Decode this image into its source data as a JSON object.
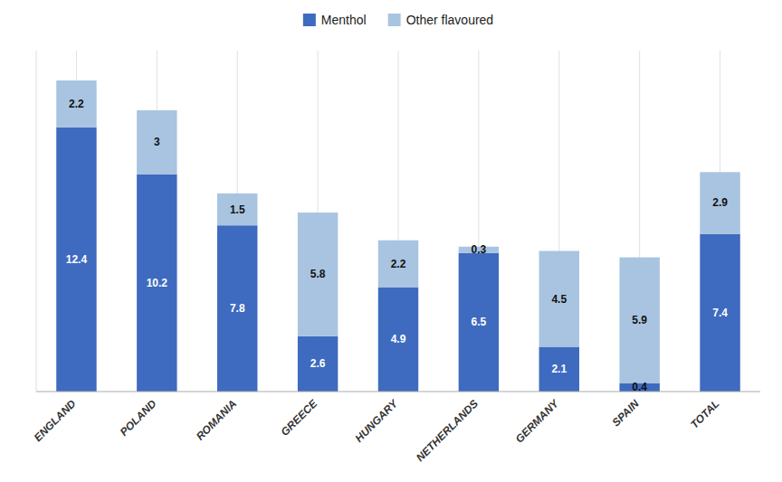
{
  "chart_data": {
    "type": "bar",
    "stacked": true,
    "categories": [
      "ENGLAND",
      "POLAND",
      "ROMANIA",
      "GREECE",
      "HUNGARY",
      "NETHERLANDS",
      "GERMANY",
      "SPAIN",
      "TOTAL"
    ],
    "series": [
      {
        "name": "Menthol",
        "color": "#3e6bbf",
        "values": [
          12.4,
          10.2,
          7.8,
          2.6,
          4.9,
          6.5,
          2.1,
          0.4,
          7.4
        ]
      },
      {
        "name": "Other flavoured",
        "color": "#a8c4e0",
        "values": [
          2.2,
          3.0,
          1.5,
          5.8,
          2.2,
          0.3,
          4.5,
          5.9,
          2.9
        ]
      }
    ],
    "ylim": [
      0,
      16
    ],
    "grid": true,
    "legend": "top",
    "data_labels": true,
    "tick_labels": "x"
  }
}
